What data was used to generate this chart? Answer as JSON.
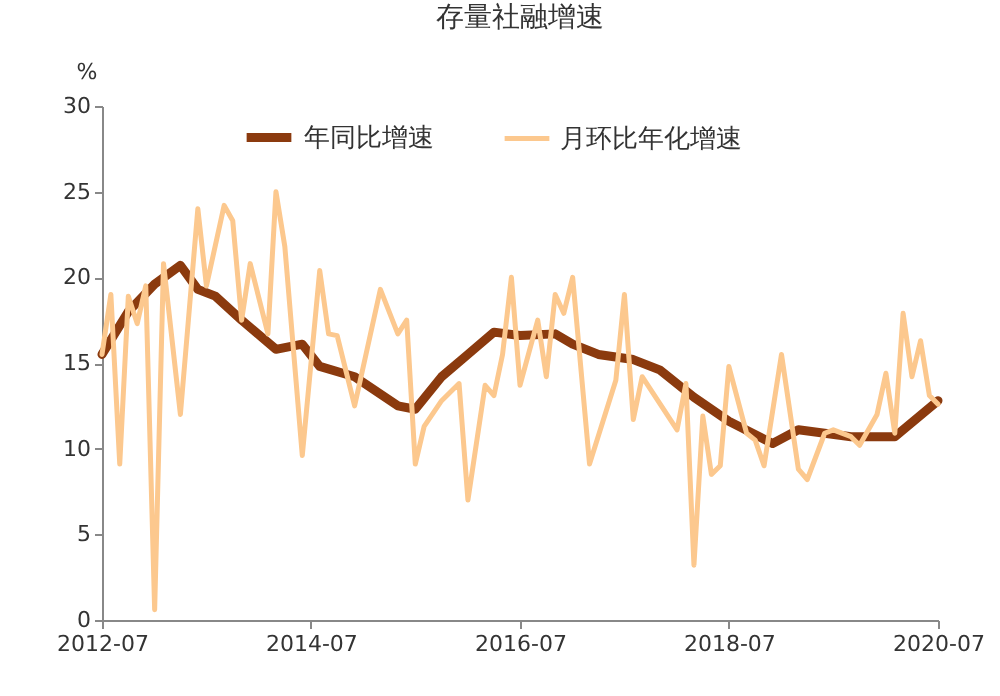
{
  "chart_data": {
    "type": "line",
    "title": "存量社融增速",
    "ylabel": "%",
    "xlim": [
      "2012-07",
      "2020-07"
    ],
    "xticks": [
      "2012-07",
      "2014-07",
      "2016-07",
      "2018-07",
      "2020-07"
    ],
    "ylim": [
      0,
      30
    ],
    "yticks": [
      0,
      5,
      10,
      15,
      20,
      25,
      30
    ],
    "grid": false,
    "legend": "top",
    "marker": "none",
    "line_style": "solid",
    "series": [
      {
        "name": "年同比增速",
        "color": "#8b3a0e",
        "x": [
          "2012-07",
          "2012-10",
          "2013-01",
          "2013-04",
          "2013-06",
          "2013-08",
          "2013-11",
          "2014-03",
          "2014-06",
          "2014-08",
          "2014-12",
          "2015-05",
          "2015-07",
          "2015-10",
          "2016-01",
          "2016-04",
          "2016-07",
          "2016-11",
          "2017-01",
          "2017-04",
          "2017-08",
          "2017-11",
          "2018-03",
          "2018-07",
          "2018-12",
          "2019-03",
          "2019-09",
          "2020-02",
          "2020-07"
        ],
        "values": [
          15.5,
          18,
          19.6,
          20.7,
          19.3,
          18.9,
          17.5,
          15.8,
          16.1,
          14.8,
          14.2,
          12.5,
          12.3,
          14.2,
          15.5,
          16.8,
          16.6,
          16.7,
          16.1,
          15.5,
          15.2,
          14.6,
          13,
          11.6,
          10.3,
          11.1,
          10.7,
          10.7,
          12.8
        ]
      },
      {
        "name": "月环比年化增速",
        "color": "#fcc88e",
        "x": [
          "2012-07",
          "2012-08",
          "2012-09",
          "2012-10",
          "2012-11",
          "2012-12",
          "2013-01",
          "2013-02",
          "2013-04",
          "2013-06",
          "2013-07",
          "2013-09",
          "2013-10",
          "2013-11",
          "2013-12",
          "2014-02",
          "2014-03",
          "2014-04",
          "2014-06",
          "2014-08",
          "2014-09",
          "2014-10",
          "2014-12",
          "2015-03",
          "2015-05",
          "2015-06",
          "2015-07",
          "2015-08",
          "2015-10",
          "2015-12",
          "2016-01",
          "2016-03",
          "2016-04",
          "2016-05",
          "2016-06",
          "2016-07",
          "2016-09",
          "2016-10",
          "2016-11",
          "2016-12",
          "2017-01",
          "2017-03",
          "2017-06",
          "2017-07",
          "2017-08",
          "2017-09",
          "2018-01",
          "2018-02",
          "2018-03",
          "2018-04",
          "2018-05",
          "2018-06",
          "2018-07",
          "2018-09",
          "2018-10",
          "2018-11",
          "2019-01",
          "2019-03",
          "2019-04",
          "2019-06",
          "2019-07",
          "2019-09",
          "2019-10",
          "2019-12",
          "2020-01",
          "2020-02",
          "2020-03",
          "2020-04",
          "2020-05",
          "2020-06",
          "2020-07"
        ],
        "values": [
          15.5,
          19,
          9.1,
          18.9,
          17.3,
          19.5,
          0.6,
          20.8,
          12,
          24,
          19.5,
          24.2,
          23.3,
          17.5,
          20.8,
          16.7,
          25,
          21.8,
          9.6,
          20.4,
          16.7,
          16.6,
          12.5,
          19.3,
          16.7,
          17.5,
          9.1,
          11.3,
          12.8,
          13.8,
          7,
          13.7,
          13.1,
          15.5,
          20,
          13.7,
          17.5,
          14.2,
          19,
          17.9,
          20,
          9.1,
          14,
          19,
          11.7,
          14.2,
          11.1,
          13.8,
          3.2,
          11.9,
          8.5,
          9,
          14.8,
          10.9,
          10.5,
          9,
          15.5,
          8.8,
          8.2,
          10.9,
          11.1,
          10.7,
          10.2,
          12,
          14.4,
          10.9,
          17.9,
          14.2,
          16.3,
          13.1,
          12.6
        ]
      }
    ]
  }
}
